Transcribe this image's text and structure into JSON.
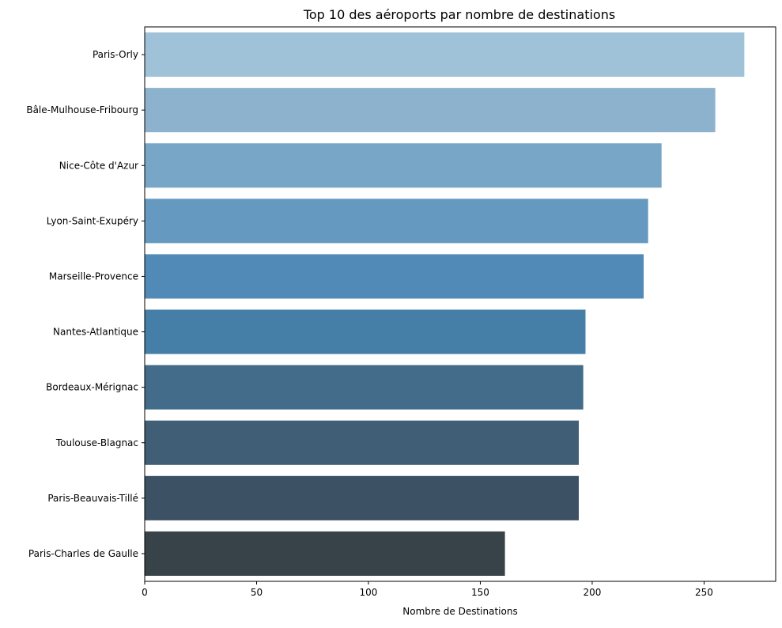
{
  "chart_data": {
    "type": "bar",
    "orientation": "horizontal",
    "title": "Top 10 des aéroports par nombre de destinations",
    "xlabel": "Nombre de Destinations",
    "ylabel": "",
    "xlim": [
      0,
      282
    ],
    "xticks": [
      0,
      50,
      100,
      150,
      200,
      250
    ],
    "grid": false,
    "categories": [
      "Paris-Orly",
      "Bâle-Mulhouse-Fribourg",
      "Nice-Côte d'Azur",
      "Lyon-Saint-Exupéry",
      "Marseille-Provence",
      "Nantes-Atlantique",
      "Bordeaux-Mérignac",
      "Toulouse-Blagnac",
      "Paris-Beauvais-Tillé",
      "Paris-Charles de Gaulle"
    ],
    "values": [
      268,
      255,
      231,
      225,
      223,
      197,
      196,
      194,
      194,
      161
    ],
    "colors": [
      "#a0c2d8",
      "#8db2cd",
      "#78a6c7",
      "#6599bf",
      "#5189b7",
      "#457ea6",
      "#426c89",
      "#405e76",
      "#3c5264",
      "#384349"
    ]
  }
}
